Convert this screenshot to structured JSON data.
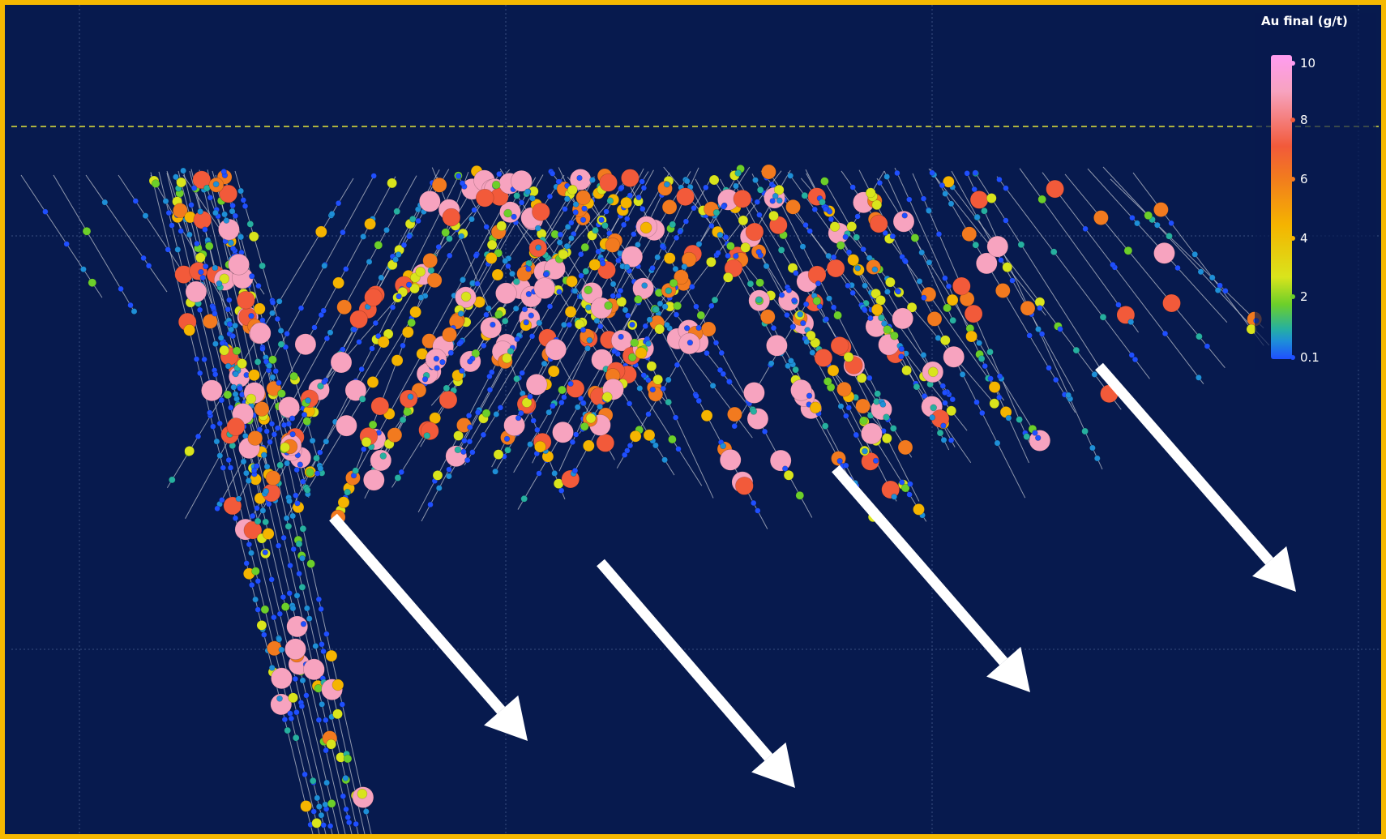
{
  "legend": {
    "title": "Au final (g/t)",
    "ticks": [
      {
        "label": "10",
        "value": 10,
        "color": "#ff9cf0"
      },
      {
        "label": "8",
        "value": 8,
        "color": "#f25a3a"
      },
      {
        "label": "6",
        "value": 6,
        "color": "#f27a1f"
      },
      {
        "label": "4",
        "value": 4,
        "color": "#f5b400"
      },
      {
        "label": "2",
        "value": 2,
        "color": "#6ccf2a"
      },
      {
        "label": "0.1",
        "value": 0.1,
        "color": "#1f4fff"
      }
    ]
  },
  "colors": {
    "background": "#071a4e",
    "frame": "#f5b800",
    "reference_line": "#e6e63a",
    "drill_trace": "#c8ccd6",
    "arrow": "#ffffff"
  },
  "icons": {
    "direction_arrows": "arrow-down-right-icon"
  }
}
